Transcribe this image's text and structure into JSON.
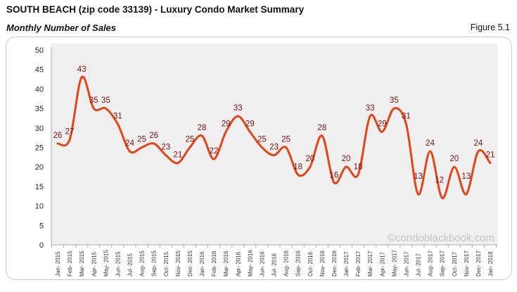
{
  "header": {
    "title": "SOUTH BEACH (zip code 33139) - Luxury Condo Market Summary",
    "subtitle": "Monthly Number of Sales",
    "figure": "Figure 5.1"
  },
  "watermark": "©condoblackbook.com",
  "colors": {
    "line": "#e0461a",
    "label": "#7a0f0f",
    "plot_bg": "#efefef"
  },
  "chart_data": {
    "type": "line",
    "categories": [
      "Jan- 2015",
      "Feb- 2015",
      "Mar- 2015",
      "Apr- 2015",
      "May- 2015",
      "Jun- 2015",
      "Jul- 2015",
      "Aug- 2015",
      "Sep- 2015",
      "Oct- 2015",
      "Nov- 2015",
      "Dec- 2015",
      "Jan- 2016",
      "Feb- 2016",
      "Mar- 2016",
      "Apr- 2016",
      "May- 2016",
      "Jun- 2016",
      "Jul- 2016",
      "Aug- 2016",
      "Sep- 2016",
      "Oct- 2016",
      "Nov- 2016",
      "Dec- 2016",
      "Jan- 2017",
      "Feb- 2017",
      "Mar- 2017",
      "Apr- 2017",
      "May- 2017",
      "Jun- 2017",
      "Jul- 2017",
      "Aug- 2017",
      "Sep- 2017",
      "Oct- 2017",
      "Nov- 2017",
      "Dec- 2017",
      "Jan- 2018"
    ],
    "values": [
      26,
      27,
      43,
      35,
      35,
      31,
      24,
      25,
      26,
      23,
      21,
      25,
      28,
      22,
      29,
      33,
      29,
      25,
      23,
      25,
      18,
      20,
      28,
      16,
      20,
      18,
      33,
      29,
      35,
      31,
      13,
      24,
      12,
      20,
      13,
      24,
      21
    ],
    "ylim": [
      0,
      50
    ],
    "yticks": [
      0,
      5,
      10,
      15,
      20,
      25,
      30,
      35,
      40,
      45,
      50
    ],
    "grid": false,
    "smooth": true,
    "data_labels": true
  }
}
